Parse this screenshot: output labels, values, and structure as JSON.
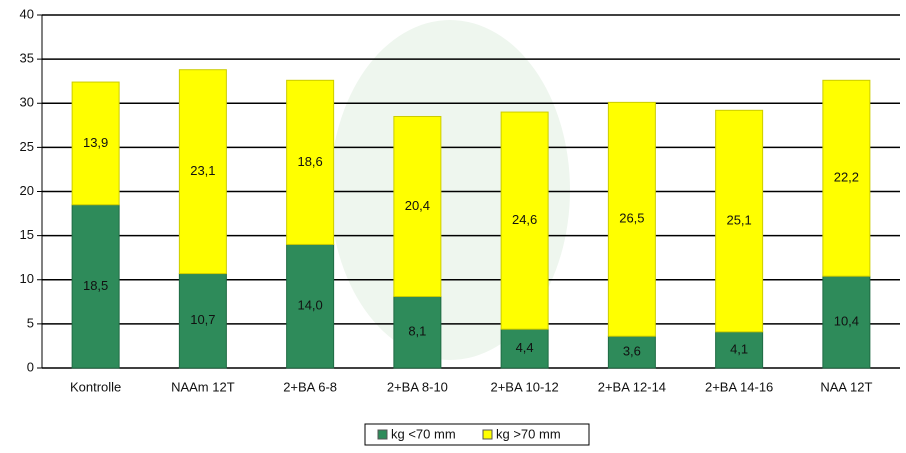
{
  "chart_data": {
    "type": "stacked-bar",
    "categories": [
      "Kontrolle",
      "NAAm 12T",
      "2+BA 6-8",
      "2+BA 8-10",
      "2+BA 10-12",
      "2+BA 12-14",
      "2+BA 14-16",
      "NAA 12T"
    ],
    "series": [
      {
        "name": "kg <70 mm",
        "color": "#2e8b5a",
        "values": [
          18.5,
          10.7,
          14.0,
          8.1,
          4.4,
          3.6,
          4.1,
          10.4
        ],
        "value_labels": [
          "18,5",
          "10,7",
          "14,0",
          "8,1",
          "4,4",
          "3,6",
          "4,1",
          "10,4"
        ]
      },
      {
        "name": "kg >70 mm",
        "color": "#ffff00",
        "values": [
          13.9,
          23.1,
          18.6,
          20.4,
          24.6,
          26.5,
          25.1,
          22.2
        ],
        "value_labels": [
          "13,9",
          "23,1",
          "18,6",
          "20,4",
          "24,6",
          "26,5",
          "25,1",
          "22,2"
        ]
      }
    ],
    "ylim": [
      0,
      40
    ],
    "yticks": [
      0,
      5,
      10,
      15,
      20,
      25,
      30,
      35,
      40
    ],
    "grid": true,
    "legend": "bottom"
  }
}
